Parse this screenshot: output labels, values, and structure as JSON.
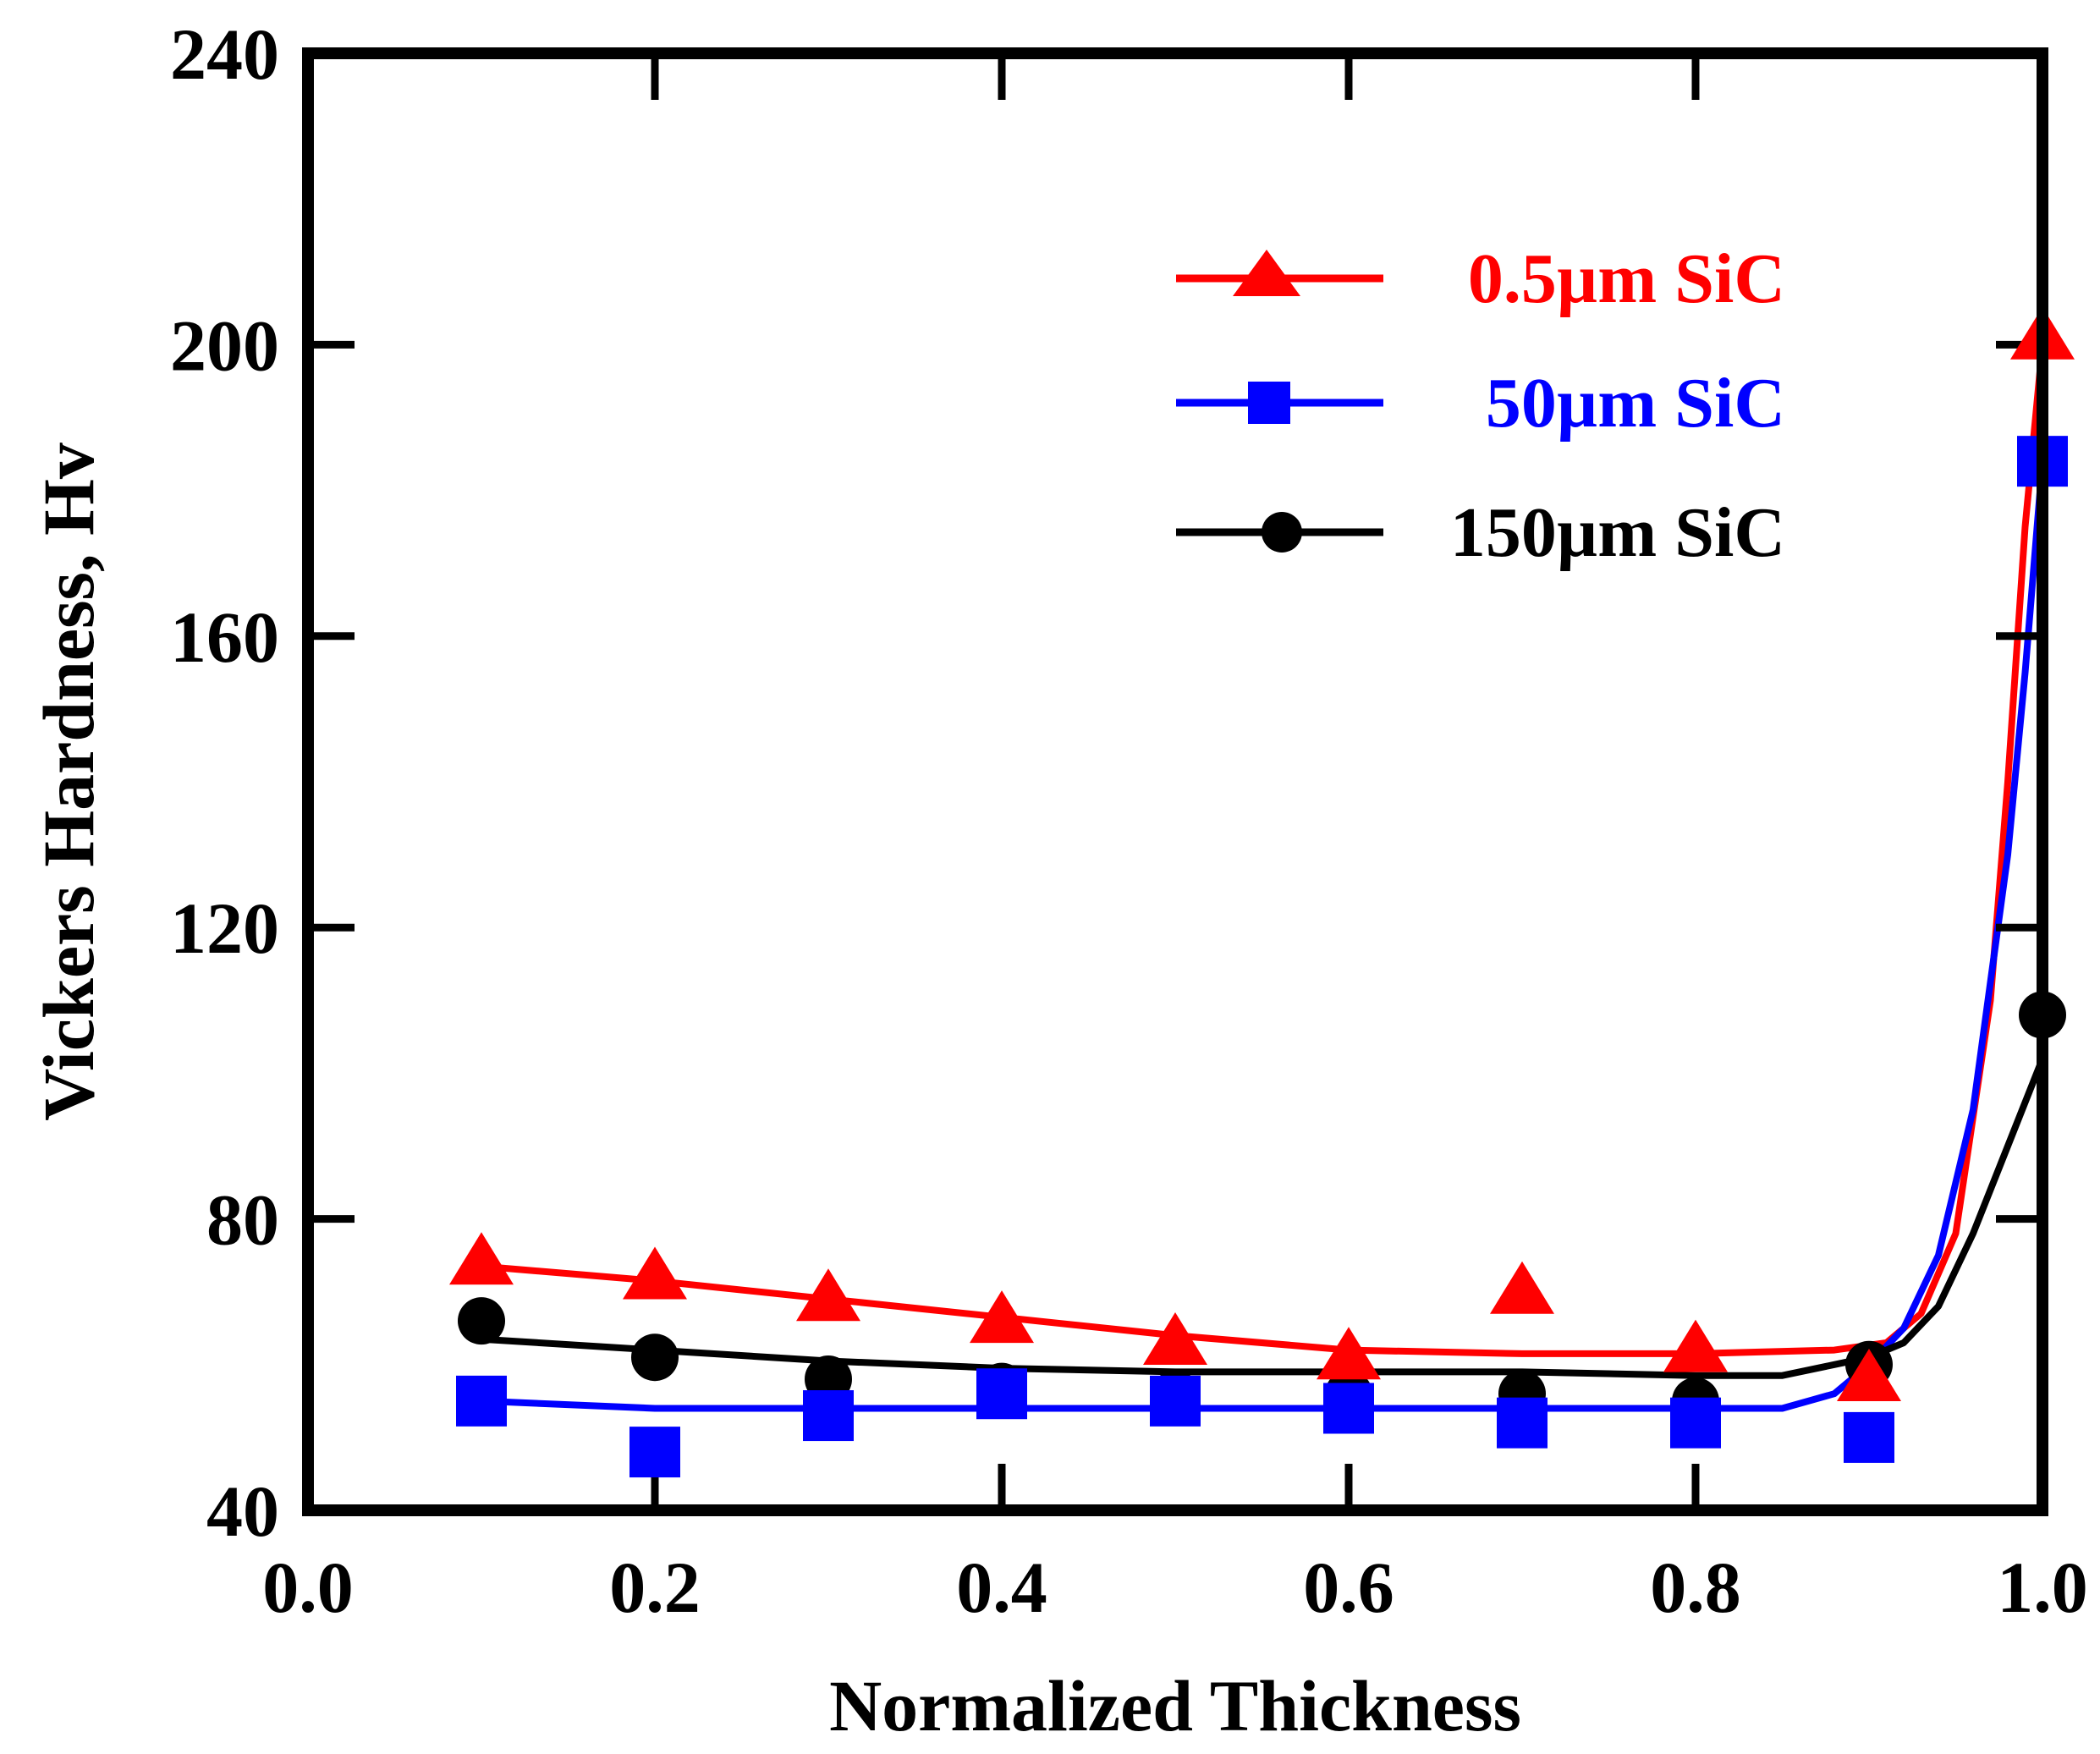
{
  "chart_data": {
    "type": "line",
    "title": "",
    "xlabel": "Normalized Thickness",
    "ylabel": "Vickers Hardness, Hv",
    "xlim": [
      0.0,
      1.0
    ],
    "ylim": [
      40,
      240
    ],
    "xticks": [
      0.0,
      0.2,
      0.4,
      0.6,
      0.8,
      1.0
    ],
    "xtick_labels": [
      "0.0",
      "0.2",
      "0.4",
      "0.6",
      "0.8",
      "1.0"
    ],
    "yticks": [
      40,
      80,
      120,
      160,
      200,
      240
    ],
    "ytick_labels": [
      "40",
      "80",
      "120",
      "160",
      "200",
      "240"
    ],
    "grid": false,
    "legend_position": "top-right",
    "series": [
      {
        "name": "0.5µm SiC",
        "legend_label": "0.5µm SiC",
        "color": "#ff0000",
        "marker": "triangle",
        "x": [
          0.1,
          0.2,
          0.3,
          0.4,
          0.5,
          0.6,
          0.7,
          0.8,
          0.9,
          1.0
        ],
        "y": [
          74,
          72,
          69,
          66,
          63,
          61,
          70,
          62,
          58,
          201
        ],
        "fit_x": [
          0.1,
          0.2,
          0.3,
          0.4,
          0.5,
          0.6,
          0.7,
          0.8,
          0.88,
          0.91,
          0.93,
          0.95,
          0.97,
          0.98,
          0.99,
          1.0
        ],
        "fit_y": [
          73.5,
          71.5,
          69,
          66.5,
          64,
          62,
          61.5,
          61.5,
          62,
          63,
          67,
          78,
          110,
          140,
          175,
          200
        ]
      },
      {
        "name": "50µm SiC",
        "legend_label": "50µm SiC",
        "color": "#0000ff",
        "marker": "square",
        "x": [
          0.1,
          0.2,
          0.3,
          0.4,
          0.5,
          0.6,
          0.7,
          0.8,
          0.9,
          1.0
        ],
        "y": [
          55,
          48,
          53,
          56,
          55,
          54,
          52,
          52,
          50,
          184
        ],
        "fit_x": [
          0.1,
          0.2,
          0.3,
          0.4,
          0.5,
          0.6,
          0.7,
          0.8,
          0.85,
          0.88,
          0.9,
          0.92,
          0.94,
          0.96,
          0.98,
          0.99,
          1.0
        ],
        "fit_y": [
          55,
          54,
          54,
          54,
          54,
          54,
          54,
          54,
          54,
          56,
          60,
          65,
          75,
          95,
          130,
          155,
          184
        ]
      },
      {
        "name": "150µm SiC",
        "legend_label": "150µm SiC",
        "color": "#000000",
        "marker": "circle",
        "x": [
          0.1,
          0.2,
          0.3,
          0.4,
          0.5,
          0.6,
          0.7,
          0.8,
          0.9,
          1.0
        ],
        "y": [
          66,
          61,
          58,
          57,
          56,
          56,
          56,
          55,
          60,
          108
        ],
        "fit_x": [
          0.1,
          0.2,
          0.3,
          0.4,
          0.5,
          0.6,
          0.7,
          0.8,
          0.85,
          0.88,
          0.9,
          0.92,
          0.94,
          0.96,
          0.98,
          1.0
        ],
        "fit_y": [
          63.5,
          62,
          60.5,
          59.5,
          59,
          59,
          59,
          58.5,
          58.5,
          60,
          61,
          63,
          68,
          78,
          90,
          102
        ]
      }
    ]
  }
}
